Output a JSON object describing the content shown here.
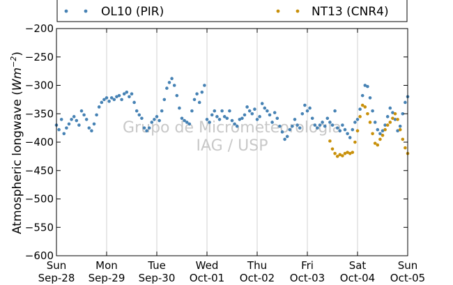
{
  "chart_data": {
    "type": "scatter",
    "title": "",
    "xlabel": "",
    "ylabel_prefix": "Atmospheric longwave (",
    "ylabel_unit_base": "Wm",
    "ylabel_unit_exp": "−2",
    "ylabel_suffix": ")",
    "ylim": [
      -600,
      -200
    ],
    "yticks": [
      -200,
      -250,
      -300,
      -350,
      -400,
      -450,
      -500,
      -550,
      -600
    ],
    "ytick_labels": [
      "−200",
      "−250",
      "−300",
      "−350",
      "−400",
      "−450",
      "−500",
      "−550",
      "−600"
    ],
    "xlim": [
      "2014-09-28",
      "2014-10-05"
    ],
    "xticks": [
      {
        "day": "Sun",
        "date": "Sep-28"
      },
      {
        "day": "Mon",
        "date": "Sep-29"
      },
      {
        "day": "Tue",
        "date": "Sep-30"
      },
      {
        "day": "Wed",
        "date": "Oct-01"
      },
      {
        "day": "Thu",
        "date": "Oct-02"
      },
      {
        "day": "Fri",
        "date": "Oct-03"
      },
      {
        "day": "Sat",
        "date": "Oct-04"
      },
      {
        "day": "Sun",
        "date": "Oct-05"
      }
    ],
    "grid": "vertical",
    "legend_position": "top (outside)",
    "watermark": [
      "Grupo de Micrometeorologia",
      "IAG / USP"
    ],
    "series": [
      {
        "name": "OL10 (PIR)",
        "color": "#4682b4",
        "points": [
          [
            0.0,
            -370
          ],
          [
            0.05,
            -378
          ],
          [
            0.1,
            -360
          ],
          [
            0.15,
            -385
          ],
          [
            0.2,
            -375
          ],
          [
            0.25,
            -368
          ],
          [
            0.3,
            -360
          ],
          [
            0.35,
            -355
          ],
          [
            0.4,
            -362
          ],
          [
            0.45,
            -370
          ],
          [
            0.5,
            -345
          ],
          [
            0.55,
            -352
          ],
          [
            0.6,
            -360
          ],
          [
            0.65,
            -375
          ],
          [
            0.7,
            -380
          ],
          [
            0.75,
            -368
          ],
          [
            0.8,
            -352
          ],
          [
            0.85,
            -338
          ],
          [
            0.9,
            -330
          ],
          [
            0.95,
            -325
          ],
          [
            1.0,
            -322
          ],
          [
            1.05,
            -328
          ],
          [
            1.1,
            -322
          ],
          [
            1.15,
            -325
          ],
          [
            1.2,
            -320
          ],
          [
            1.25,
            -318
          ],
          [
            1.3,
            -325
          ],
          [
            1.35,
            -315
          ],
          [
            1.4,
            -312
          ],
          [
            1.45,
            -320
          ],
          [
            1.5,
            -315
          ],
          [
            1.55,
            -330
          ],
          [
            1.6,
            -345
          ],
          [
            1.65,
            -352
          ],
          [
            1.7,
            -358
          ],
          [
            1.75,
            -375
          ],
          [
            1.8,
            -380
          ],
          [
            1.85,
            -375
          ],
          [
            1.9,
            -365
          ],
          [
            1.95,
            -360
          ],
          [
            2.0,
            -355
          ],
          [
            2.05,
            -362
          ],
          [
            2.1,
            -345
          ],
          [
            2.15,
            -325
          ],
          [
            2.2,
            -305
          ],
          [
            2.25,
            -295
          ],
          [
            2.3,
            -288
          ],
          [
            2.35,
            -300
          ],
          [
            2.4,
            -318
          ],
          [
            2.45,
            -340
          ],
          [
            2.5,
            -358
          ],
          [
            2.55,
            -362
          ],
          [
            2.6,
            -365
          ],
          [
            2.65,
            -368
          ],
          [
            2.7,
            -345
          ],
          [
            2.75,
            -325
          ],
          [
            2.8,
            -315
          ],
          [
            2.85,
            -330
          ],
          [
            2.9,
            -312
          ],
          [
            2.95,
            -300
          ],
          [
            3.0,
            -360
          ],
          [
            3.05,
            -365
          ],
          [
            3.1,
            -352
          ],
          [
            3.15,
            -345
          ],
          [
            3.2,
            -355
          ],
          [
            3.25,
            -360
          ],
          [
            3.3,
            -345
          ],
          [
            3.35,
            -355
          ],
          [
            3.4,
            -358
          ],
          [
            3.45,
            -345
          ],
          [
            3.5,
            -362
          ],
          [
            3.55,
            -368
          ],
          [
            3.6,
            -372
          ],
          [
            3.65,
            -360
          ],
          [
            3.7,
            -358
          ],
          [
            3.75,
            -352
          ],
          [
            3.8,
            -338
          ],
          [
            3.85,
            -345
          ],
          [
            3.9,
            -350
          ],
          [
            3.95,
            -342
          ],
          [
            4.0,
            -360
          ],
          [
            4.05,
            -355
          ],
          [
            4.1,
            -332
          ],
          [
            4.15,
            -340
          ],
          [
            4.2,
            -345
          ],
          [
            4.25,
            -352
          ],
          [
            4.3,
            -365
          ],
          [
            4.35,
            -348
          ],
          [
            4.4,
            -358
          ],
          [
            4.45,
            -372
          ],
          [
            4.5,
            -382
          ],
          [
            4.55,
            -395
          ],
          [
            4.6,
            -390
          ],
          [
            4.65,
            -378
          ],
          [
            4.7,
            -372
          ],
          [
            4.75,
            -360
          ],
          [
            4.8,
            -370
          ],
          [
            4.85,
            -375
          ],
          [
            4.9,
            -350
          ],
          [
            4.95,
            -335
          ],
          [
            5.0,
            -345
          ],
          [
            5.05,
            -340
          ],
          [
            5.1,
            -358
          ],
          [
            5.15,
            -370
          ],
          [
            5.2,
            -375
          ],
          [
            5.25,
            -370
          ],
          [
            5.3,
            -365
          ],
          [
            5.35,
            -372
          ],
          [
            5.4,
            -358
          ],
          [
            5.45,
            -365
          ],
          [
            5.5,
            -370
          ],
          [
            5.55,
            -345
          ],
          [
            5.6,
            -375
          ],
          [
            5.65,
            -380
          ],
          [
            5.7,
            -370
          ],
          [
            5.75,
            -378
          ],
          [
            5.8,
            -385
          ],
          [
            5.85,
            -392
          ],
          [
            5.9,
            -378
          ],
          [
            5.95,
            -365
          ],
          [
            6.0,
            -360
          ],
          [
            6.05,
            -342
          ],
          [
            6.1,
            -318
          ],
          [
            6.15,
            -300
          ],
          [
            6.2,
            -302
          ],
          [
            6.25,
            -322
          ],
          [
            6.3,
            -345
          ],
          [
            6.35,
            -365
          ],
          [
            6.4,
            -378
          ],
          [
            6.45,
            -385
          ],
          [
            6.5,
            -380
          ],
          [
            6.55,
            -370
          ],
          [
            6.6,
            -355
          ],
          [
            6.65,
            -340
          ],
          [
            6.7,
            -348
          ],
          [
            6.75,
            -360
          ],
          [
            6.8,
            -380
          ],
          [
            6.85,
            -372
          ],
          [
            6.9,
            -350
          ],
          [
            6.95,
            -330
          ],
          [
            7.0,
            -320
          ]
        ]
      },
      {
        "name": "NT13 (CNR4)",
        "color": "#c8900a",
        "points": [
          [
            5.45,
            -398
          ],
          [
            5.5,
            -412
          ],
          [
            5.55,
            -420
          ],
          [
            5.6,
            -425
          ],
          [
            5.65,
            -422
          ],
          [
            5.7,
            -424
          ],
          [
            5.75,
            -420
          ],
          [
            5.8,
            -418
          ],
          [
            5.85,
            -420
          ],
          [
            5.9,
            -418
          ],
          [
            5.95,
            -400
          ],
          [
            6.0,
            -380
          ],
          [
            6.05,
            -355
          ],
          [
            6.1,
            -335
          ],
          [
            6.15,
            -338
          ],
          [
            6.2,
            -350
          ],
          [
            6.25,
            -365
          ],
          [
            6.3,
            -385
          ],
          [
            6.35,
            -402
          ],
          [
            6.4,
            -405
          ],
          [
            6.45,
            -395
          ],
          [
            6.5,
            -388
          ],
          [
            6.55,
            -378
          ],
          [
            6.6,
            -370
          ],
          [
            6.65,
            -365
          ],
          [
            6.7,
            -358
          ],
          [
            6.75,
            -350
          ],
          [
            6.8,
            -360
          ],
          [
            6.85,
            -378
          ],
          [
            6.9,
            -395
          ],
          [
            6.95,
            -410
          ],
          [
            7.0,
            -420
          ]
        ]
      }
    ]
  }
}
